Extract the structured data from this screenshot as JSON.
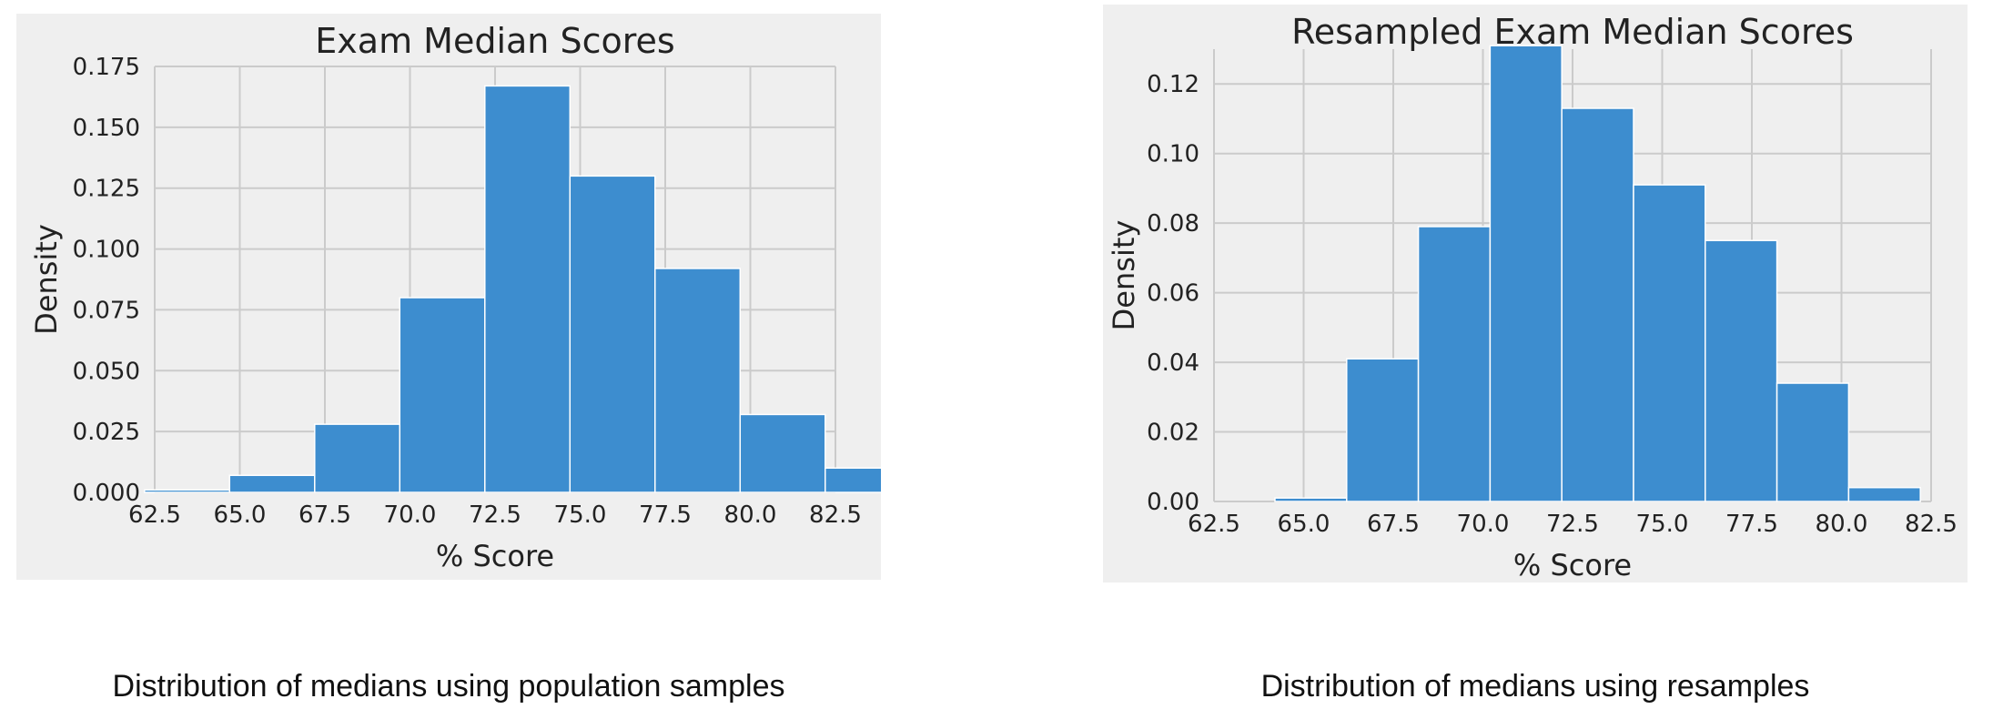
{
  "chart_data": [
    {
      "type": "bar",
      "title": "Exam Median Scores",
      "xlabel": "% Score",
      "ylabel": "Density",
      "xlim": [
        62.5,
        82.5
      ],
      "ylim": [
        0,
        0.175
      ],
      "xticks": [
        "62.5",
        "65.0",
        "67.5",
        "70.0",
        "72.5",
        "75.0",
        "77.5",
        "80.0",
        "82.5"
      ],
      "yticks": [
        "0.000",
        "0.025",
        "0.050",
        "0.075",
        "0.100",
        "0.125",
        "0.150",
        "0.175"
      ],
      "grid": true,
      "bins": [
        {
          "x0": 62.2,
          "x1": 64.7,
          "value": 0.001
        },
        {
          "x0": 64.7,
          "x1": 67.2,
          "value": 0.007
        },
        {
          "x0": 67.2,
          "x1": 69.7,
          "value": 0.028
        },
        {
          "x0": 69.7,
          "x1": 72.2,
          "value": 0.08
        },
        {
          "x0": 72.2,
          "x1": 74.7,
          "value": 0.167
        },
        {
          "x0": 74.7,
          "x1": 77.2,
          "value": 0.13
        },
        {
          "x0": 77.2,
          "x1": 79.7,
          "value": 0.092
        },
        {
          "x0": 79.7,
          "x1": 82.2,
          "value": 0.032
        },
        {
          "x0": 82.2,
          "x1": 84.7,
          "value": 0.01
        }
      ]
    },
    {
      "type": "bar",
      "title": "Resampled Exam Median Scores",
      "xlabel": "% Score",
      "ylabel": "Density",
      "xlim": [
        62.5,
        82.5
      ],
      "ylim": [
        0,
        0.13
      ],
      "xticks": [
        "62.5",
        "65.0",
        "67.5",
        "70.0",
        "72.5",
        "75.0",
        "77.5",
        "80.0",
        "82.5"
      ],
      "yticks": [
        "0.00",
        "0.02",
        "0.04",
        "0.06",
        "0.08",
        "0.10",
        "0.12"
      ],
      "grid": true,
      "bins": [
        {
          "x0": 64.2,
          "x1": 66.2,
          "value": 0.001
        },
        {
          "x0": 66.2,
          "x1": 68.2,
          "value": 0.041
        },
        {
          "x0": 68.2,
          "x1": 70.2,
          "value": 0.079
        },
        {
          "x0": 70.2,
          "x1": 72.2,
          "value": 0.131
        },
        {
          "x0": 72.2,
          "x1": 74.2,
          "value": 0.113
        },
        {
          "x0": 74.2,
          "x1": 76.2,
          "value": 0.091
        },
        {
          "x0": 76.2,
          "x1": 78.2,
          "value": 0.075
        },
        {
          "x0": 78.2,
          "x1": 80.2,
          "value": 0.034
        },
        {
          "x0": 80.2,
          "x1": 82.2,
          "value": 0.004
        }
      ]
    }
  ],
  "captions": {
    "left": "Distribution of medians using population samples",
    "right": "Distribution of medians using resamples"
  },
  "colors": {
    "figure_bg": "#efefef",
    "grid": "#cbcbcb",
    "bar_fill": "#3d8dcf",
    "bar_edge": "#ffffff"
  }
}
